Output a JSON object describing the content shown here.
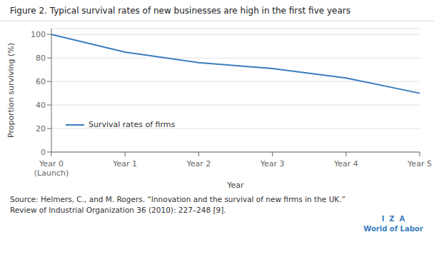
{
  "chart_data": {
    "type": "line",
    "title": "Figure 2. Typical survival rates of new businesses are high in the first five years",
    "categories": [
      "Year 0\n(Launch)",
      "Year 1",
      "Year 2",
      "Year 3",
      "Year 4",
      "Year 5"
    ],
    "series": [
      {
        "name": "Survival rates of firms",
        "color": "#3a7ebf",
        "values": [
          100,
          85,
          76,
          71,
          63,
          50
        ]
      }
    ],
    "xlabel": "Year",
    "ylabel": "Proportion surviving (%)",
    "ylim": [
      0,
      105
    ],
    "yticks": [
      0,
      20,
      40,
      60,
      80,
      100
    ],
    "grid": true,
    "legend": "lower left",
    "annotations": [
      "Source: Helmers, C., and M. Rogers. “Innovation and the survival of new firms in the UK.” Review of Industrial Organization 36 (2010): 227–248 [9].",
      "I  Z  A",
      "World of Labor"
    ]
  }
}
